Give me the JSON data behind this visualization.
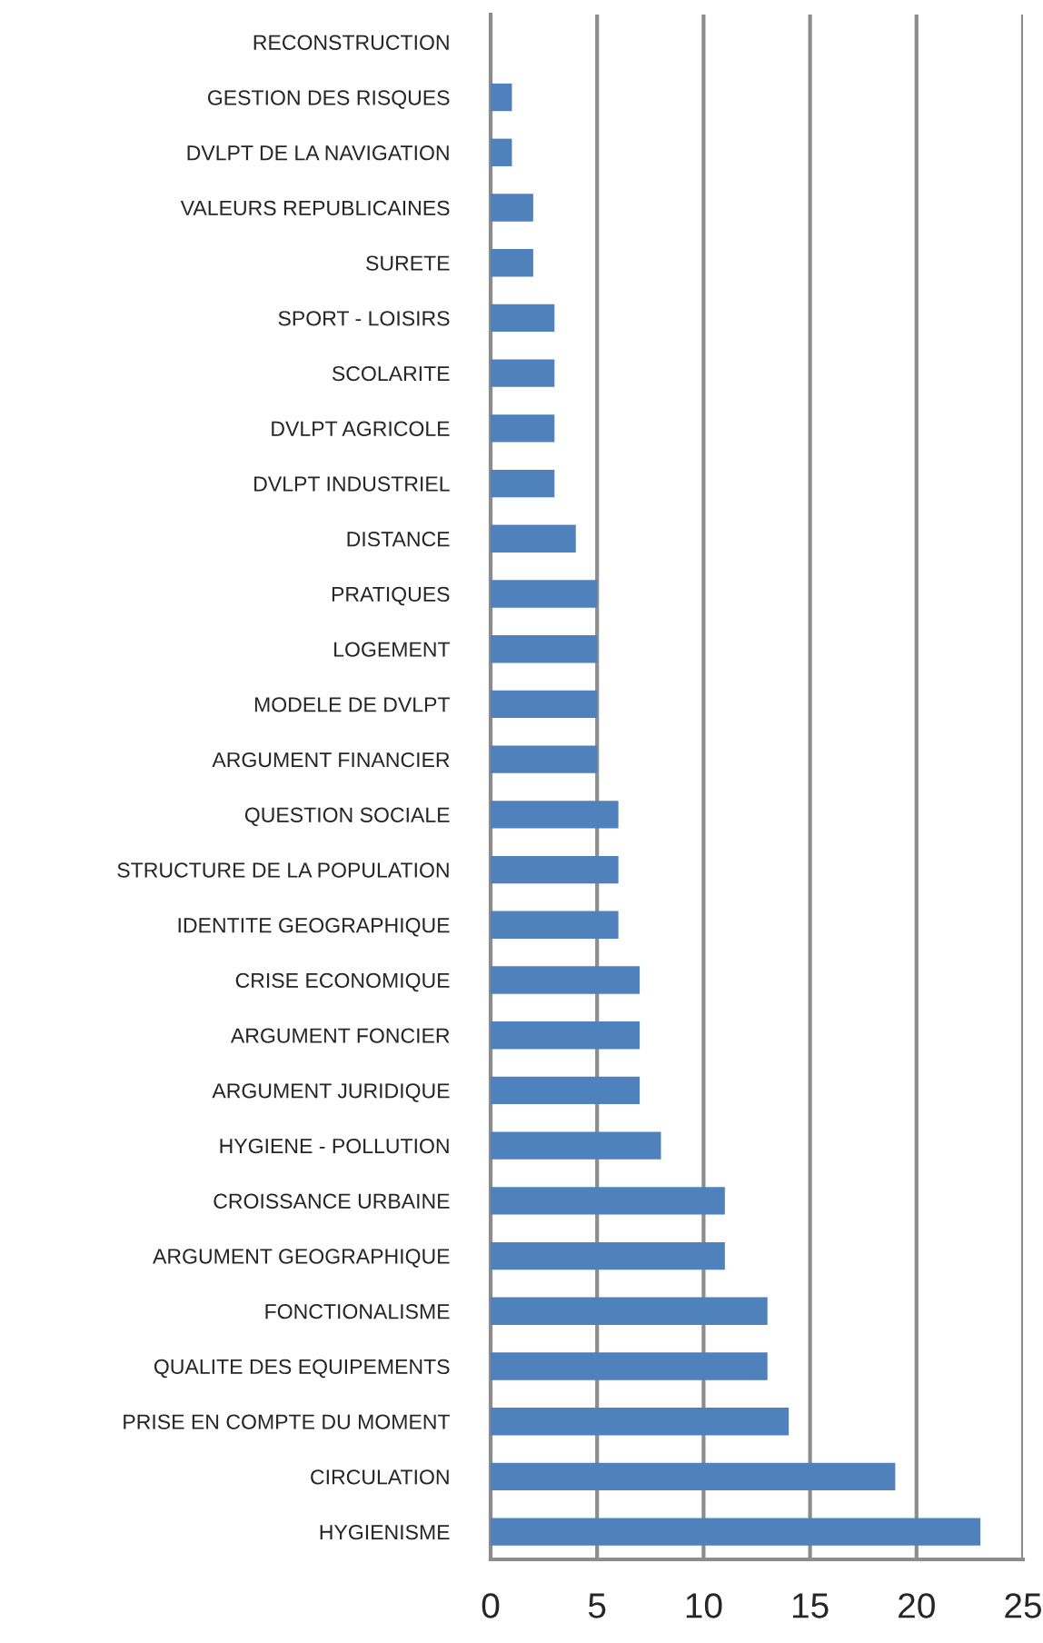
{
  "chart_data": {
    "type": "bar",
    "orientation": "horizontal",
    "color": "#4f81bd",
    "categories": [
      "RECONSTRUCTION",
      "GESTION DES RISQUES",
      "DVLPT DE LA NAVIGATION",
      "VALEURS REPUBLICAINES",
      "SURETE",
      "SPORT - LOISIRS",
      "SCOLARITE",
      "DVLPT AGRICOLE",
      "DVLPT INDUSTRIEL",
      "DISTANCE",
      "PRATIQUES",
      "LOGEMENT",
      "MODELE DE DVLPT",
      "ARGUMENT FINANCIER",
      "QUESTION SOCIALE",
      "STRUCTURE DE LA POPULATION",
      "IDENTITE GEOGRAPHIQUE",
      "CRISE ECONOMIQUE",
      "ARGUMENT FONCIER",
      "ARGUMENT JURIDIQUE",
      "HYGIENE - POLLUTION",
      "CROISSANCE URBAINE",
      "ARGUMENT GEOGRAPHIQUE",
      "FONCTIONALISME",
      "QUALITE DES EQUIPEMENTS",
      "PRISE EN COMPTE DU MOMENT",
      "CIRCULATION",
      "HYGIENISME"
    ],
    "values": [
      0,
      1,
      1,
      2,
      2,
      3,
      3,
      3,
      3,
      4,
      5,
      5,
      5,
      5,
      6,
      6,
      6,
      7,
      7,
      7,
      8,
      11,
      11,
      13,
      13,
      14,
      19,
      23
    ],
    "xlim": [
      0,
      25
    ],
    "xticks": [
      0,
      5,
      10,
      15,
      20,
      25
    ],
    "grid": "x",
    "legend": false
  }
}
